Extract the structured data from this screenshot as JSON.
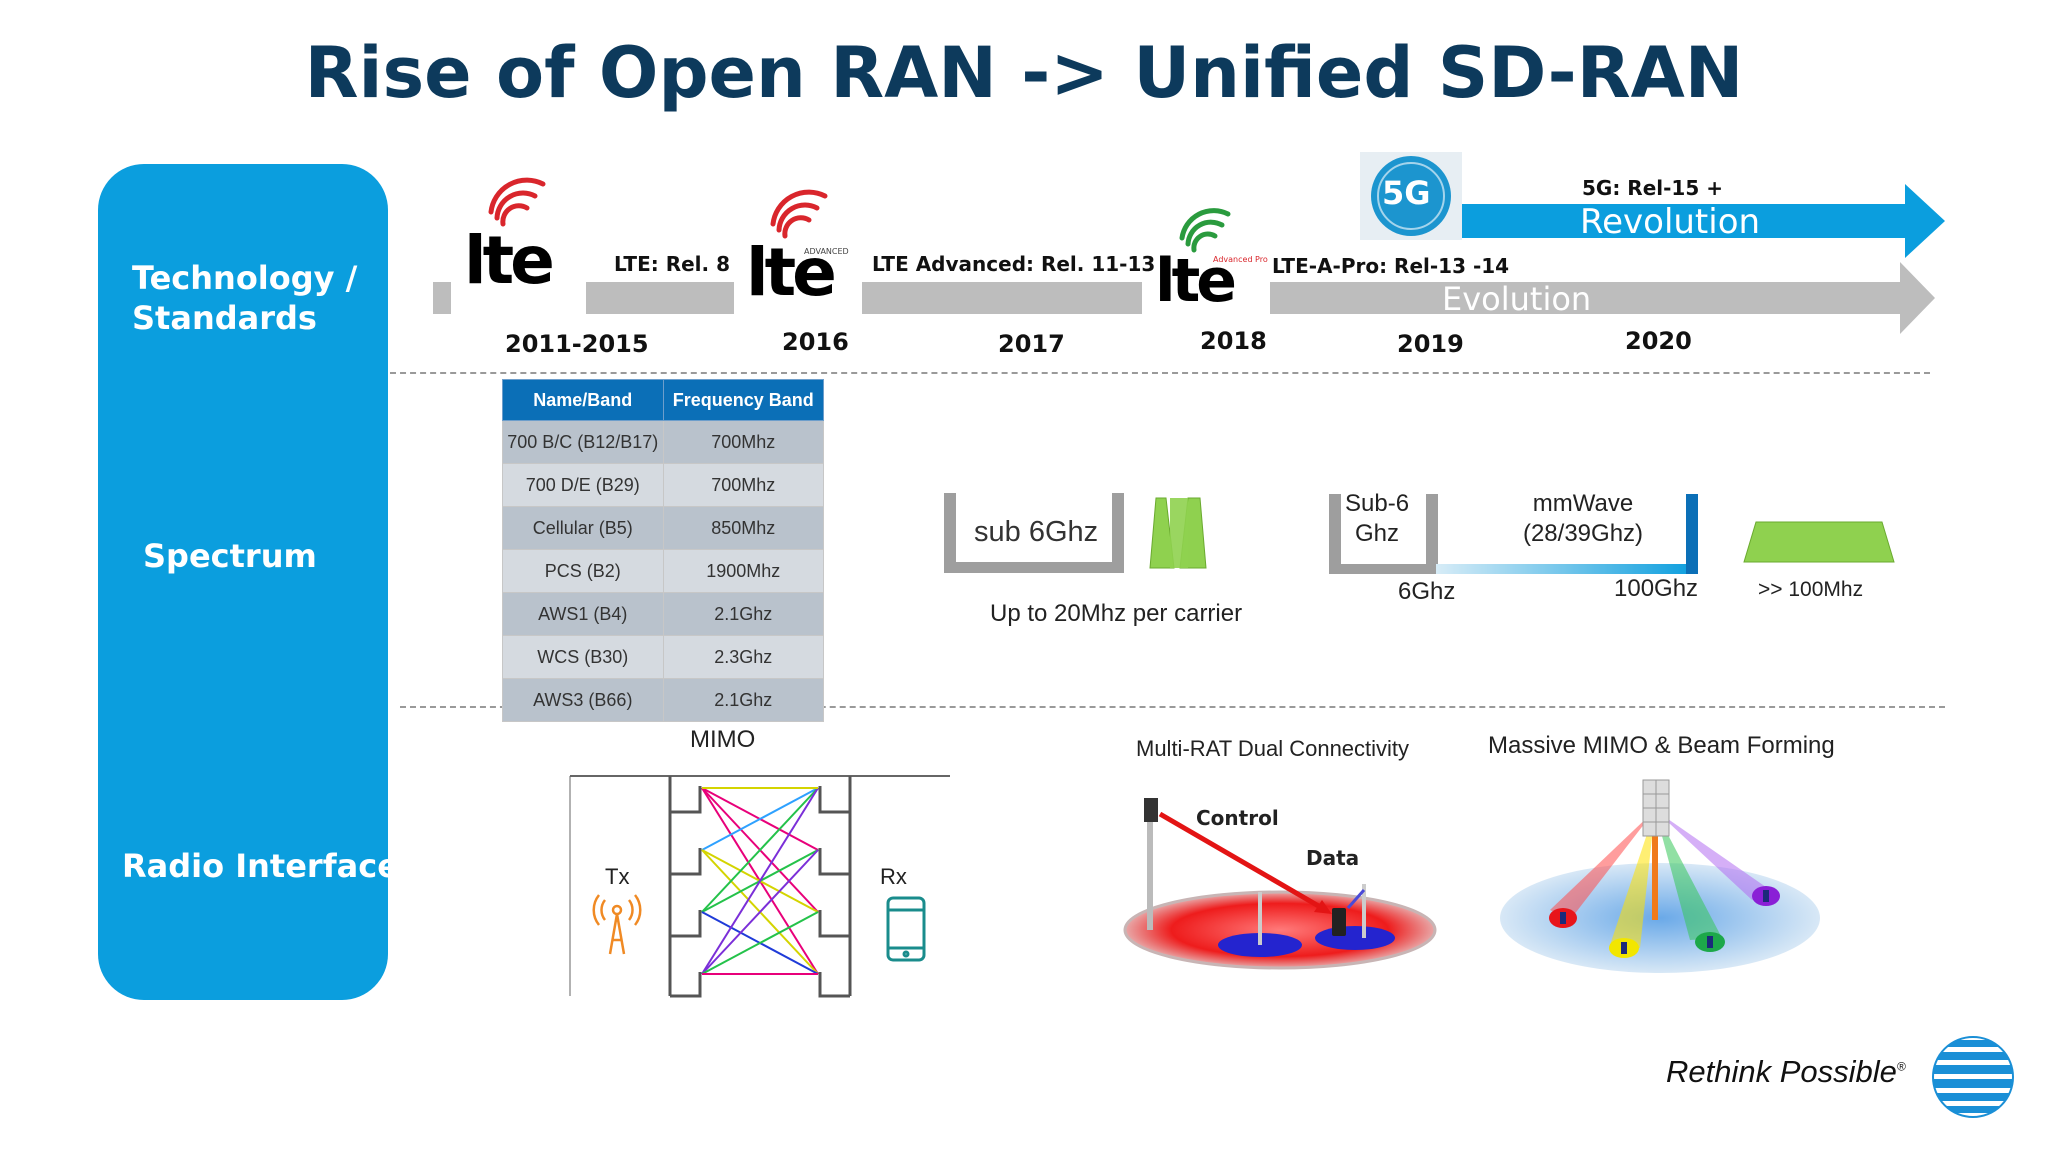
{
  "title": "Rise of Open RAN -> Unified SD-RAN",
  "rows": {
    "technology": "Technology /\nStandards",
    "spectrum": "Spectrum",
    "radio": "Radio Interface"
  },
  "timeline": {
    "years": [
      "2011-2015",
      "2016",
      "2017",
      "2018",
      "2019",
      "2020"
    ],
    "segments": [
      "LTE: Rel. 8",
      "LTE Advanced: Rel. 11-13",
      "LTE-A-Pro: Rel-13 -14"
    ],
    "logos": [
      {
        "text": "lte",
        "badge": ""
      },
      {
        "text": "lte",
        "badge": "ADVANCED"
      },
      {
        "text": "lte",
        "badge": "Advanced Pro"
      },
      {
        "text": "5G",
        "badge": ""
      }
    ],
    "revolution_top": "5G: Rel-15 +",
    "revolution": "Revolution",
    "evolution": "Evolution"
  },
  "spectrum_table": {
    "headers": [
      "Name/Band",
      "Frequency Band"
    ],
    "rows": [
      [
        "700 B/C (B12/B17)",
        "700Mhz"
      ],
      [
        "700 D/E (B29)",
        "700Mhz"
      ],
      [
        "Cellular (B5)",
        "850Mhz"
      ],
      [
        "PCS (B2)",
        "1900Mhz"
      ],
      [
        "AWS1 (B4)",
        "2.1Ghz"
      ],
      [
        "WCS (B30)",
        "2.3Ghz"
      ],
      [
        "AWS3 (B66)",
        "2.1Ghz"
      ]
    ]
  },
  "spectrum": {
    "sub6_box": "sub 6Ghz",
    "carrier_note": "Up to 20Mhz per carrier",
    "sub6_label": "Sub-6\nGhz",
    "mmwave_label": "mmWave\n(28/39Ghz)",
    "six_ghz": "6Ghz",
    "hundred_ghz": "100Ghz",
    "over_100": ">> 100Mhz"
  },
  "radio": {
    "mimo_title": "MIMO",
    "tx": "Tx",
    "rx": "Rx",
    "multirat_title": "Multi-RAT Dual Connectivity",
    "control": "Control",
    "data": "Data",
    "massive_title": "Massive MIMO & Beam Forming"
  },
  "brand": {
    "tagline": "Rethink Possible",
    "registered": "®"
  },
  "colors": {
    "title": "#0d3a5c",
    "panel": "#0b9ede",
    "revolution": "#0b9ede",
    "evolution": "#bdbdbd",
    "table_header": "#0b6fb7",
    "lte_red": "#d9262c",
    "lte_green": "#2a9b3e",
    "band_green": "#8fd14f"
  }
}
